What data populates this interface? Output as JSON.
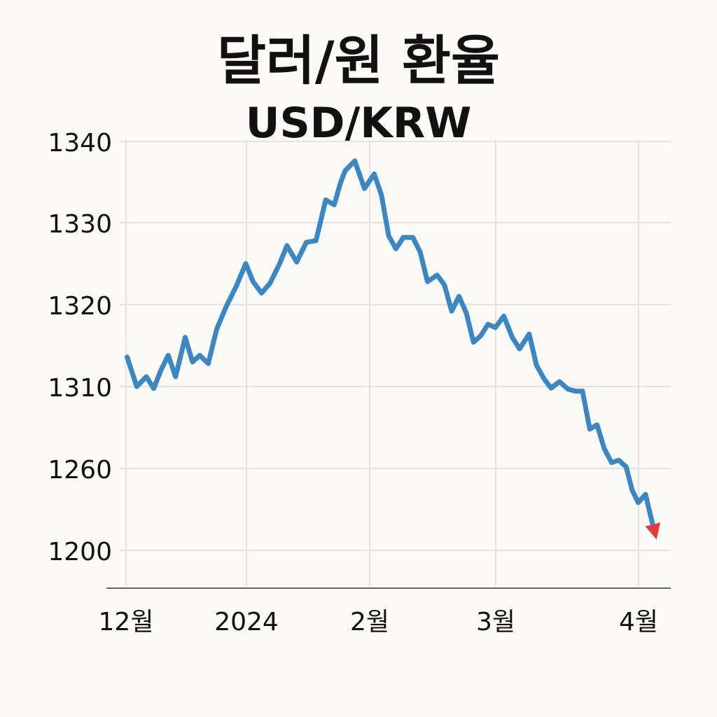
{
  "chart_data": {
    "type": "line",
    "title": "달러/원 환율",
    "subtitle": "USD/KRW",
    "y_ticks": [
      "1340",
      "1330",
      "1320",
      "1310",
      "1260",
      "1200"
    ],
    "x_ticks": [
      "12월",
      "2024",
      "2월",
      "3월",
      "4월"
    ],
    "grid": true,
    "series": [
      {
        "color": "#3a87c4",
        "end_marker_color": "#e53935",
        "points": [
          [
            0.2,
            1313.6
          ],
          [
            1.0,
            1310.0
          ],
          [
            1.8,
            1311.2
          ],
          [
            2.4,
            1308.8
          ],
          [
            3.0,
            1312.0
          ],
          [
            3.6,
            1313.8
          ],
          [
            4.2,
            1311.2
          ],
          [
            5.0,
            1316.0
          ],
          [
            5.6,
            1313.0
          ],
          [
            6.2,
            1313.8
          ],
          [
            6.9,
            1312.8
          ],
          [
            7.6,
            1317.0
          ],
          [
            8.4,
            1319.8
          ],
          [
            9.2,
            1322.2
          ],
          [
            10.0,
            1325.0
          ],
          [
            10.6,
            1322.8
          ],
          [
            11.3,
            1321.4
          ],
          [
            12.0,
            1322.6
          ],
          [
            12.8,
            1325.0
          ],
          [
            13.4,
            1327.2
          ],
          [
            14.2,
            1325.2
          ],
          [
            15.0,
            1327.6
          ],
          [
            15.8,
            1327.8
          ],
          [
            16.6,
            1332.8
          ],
          [
            17.3,
            1332.2
          ],
          [
            17.8,
            1334.8
          ],
          [
            18.2,
            1336.4
          ],
          [
            19.0,
            1337.6
          ],
          [
            19.8,
            1334.2
          ],
          [
            20.6,
            1336.0
          ],
          [
            21.2,
            1333.4
          ],
          [
            21.8,
            1328.4
          ],
          [
            22.4,
            1326.8
          ],
          [
            23.0,
            1328.2
          ],
          [
            23.8,
            1328.2
          ],
          [
            24.4,
            1326.4
          ],
          [
            25.0,
            1322.8
          ],
          [
            25.8,
            1323.6
          ],
          [
            26.4,
            1322.4
          ],
          [
            27.0,
            1319.2
          ],
          [
            27.6,
            1321.0
          ],
          [
            28.2,
            1319.0
          ],
          [
            28.8,
            1315.4
          ],
          [
            29.4,
            1316.2
          ],
          [
            30.0,
            1317.6
          ],
          [
            30.6,
            1317.2
          ],
          [
            31.3,
            1318.6
          ],
          [
            32.0,
            1316.0
          ],
          [
            32.6,
            1314.6
          ],
          [
            33.4,
            1316.4
          ],
          [
            34.0,
            1312.6
          ],
          [
            34.6,
            1311.0
          ],
          [
            35.2,
            1309.0
          ],
          [
            35.9,
            1310.6
          ],
          [
            36.6,
            1308.4
          ],
          [
            37.2,
            1307.2
          ],
          [
            37.8,
            1307.2
          ],
          [
            38.4,
            1284.0
          ],
          [
            39.0,
            1286.6
          ],
          [
            39.6,
            1272.0
          ],
          [
            40.2,
            1263.6
          ],
          [
            40.8,
            1265.0
          ],
          [
            41.4,
            1261.0
          ],
          [
            41.9,
            1244.0
          ],
          [
            42.4,
            1235.0
          ],
          [
            43.0,
            1241.0
          ],
          [
            43.4,
            1226.0
          ],
          [
            43.8,
            1212.0
          ]
        ]
      }
    ]
  }
}
